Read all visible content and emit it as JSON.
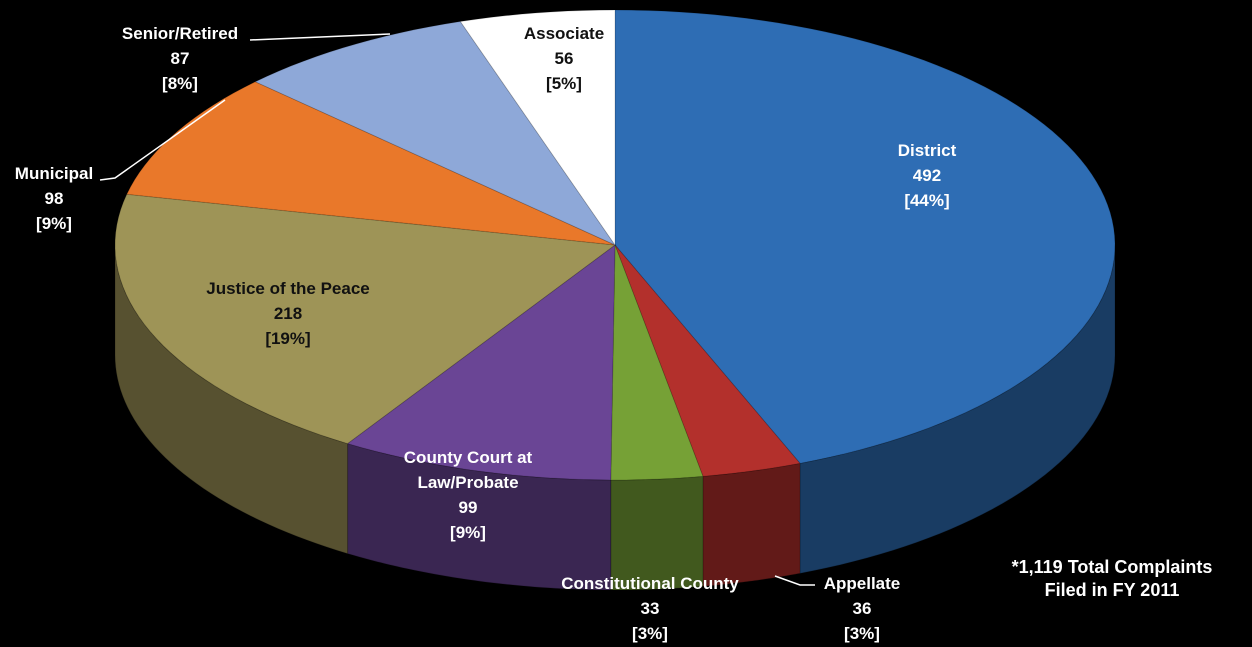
{
  "chart_data": {
    "type": "pie",
    "categories": [
      "District",
      "Appellate",
      "Constitutional County",
      "County Court at Law/Probate",
      "Justice of the Peace",
      "Municipal",
      "Senior/Retired",
      "Associate"
    ],
    "values": [
      492,
      36,
      33,
      99,
      218,
      98,
      87,
      56
    ],
    "percent_labels": [
      "[44%]",
      "[3%]",
      "[3%]",
      "[9%]",
      "[19%]",
      "[9%]",
      "[8%]",
      "[5%]"
    ],
    "colors": [
      "#2e6db4",
      "#b3302c",
      "#76a136",
      "#6a4595",
      "#9e9457",
      "#e9782a",
      "#8ea8d8",
      "#ffffff"
    ],
    "annotation": [
      "*1,119 Total Complaints",
      "Filed in FY 2011"
    ]
  }
}
